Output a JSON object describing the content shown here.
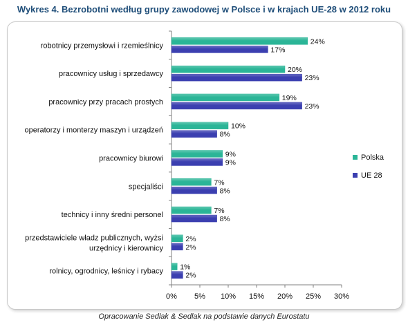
{
  "title": "Wykres 4. Bezrobotni według grupy zawodowej w Polsce i w krajach UE-28 w 2012 roku",
  "source": "Opracowanie Sedlak & Sedlak na podstawie danych Eurostatu",
  "colors": {
    "polska": "#2bb597",
    "ue28": "#3b3fb0"
  },
  "chart_data": {
    "type": "bar",
    "orientation": "horizontal",
    "categories": [
      [
        "robotnicy przemysłowi i rzemieślnicy"
      ],
      [
        "pracownicy usług i sprzedawcy"
      ],
      [
        "pracownicy przy pracach prostych"
      ],
      [
        "operatorzy i monterzy maszyn  i urządzeń"
      ],
      [
        "pracownicy biurowi"
      ],
      [
        "specjaliści"
      ],
      [
        "technicy i inny średni personel"
      ],
      [
        "przedstawiciele władz  publicznych, wyżsi",
        "urzędnicy i kierownicy"
      ],
      [
        "rolnicy, ogrodnicy, leśnicy i rybacy"
      ]
    ],
    "series": [
      {
        "name": "Polska",
        "values": [
          24,
          20,
          19,
          10,
          9,
          7,
          7,
          2,
          1
        ],
        "labels": [
          "24%",
          "20%",
          "19%",
          "10%",
          "9%",
          "7%",
          "7%",
          "2%",
          "1%"
        ]
      },
      {
        "name": "UE 28",
        "values": [
          17,
          23,
          23,
          8,
          9,
          8,
          8,
          2,
          2
        ],
        "labels": [
          "17%",
          "23%",
          "23%",
          "8%",
          "9%",
          "8%",
          "8%",
          "2%",
          "2%"
        ]
      }
    ],
    "xlim": [
      0,
      30
    ],
    "xticks": [
      "0%",
      "5%",
      "10%",
      "15%",
      "20%",
      "25%",
      "30%"
    ],
    "legend": "right",
    "grid": false
  }
}
